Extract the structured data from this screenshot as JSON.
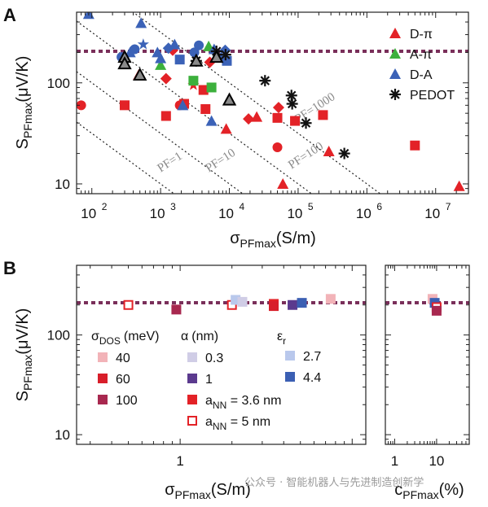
{
  "watermark": "公众号 · 智能机器人与先进制造创新学",
  "chart_data": [
    {
      "panel": "A",
      "type": "scatter",
      "x_scale": "log",
      "y_scale": "log",
      "xlabel_main": "σ",
      "xlabel_sub": "PFmax",
      "xlabel_unit": "(S/m)",
      "ylabel_main": "S",
      "ylabel_sub": "PFmax",
      "ylabel_unit": "(μV/K)",
      "xlim": [
        60,
        30000000
      ],
      "ylim": [
        8,
        500
      ],
      "x_ticks": [
        {
          "v": 100,
          "m": "10",
          "e": "2"
        },
        {
          "v": 1000,
          "m": "10",
          "e": "3"
        },
        {
          "v": 10000,
          "m": "10",
          "e": "4"
        },
        {
          "v": 100000,
          "m": "10",
          "e": "5"
        },
        {
          "v": 1000000,
          "m": "10",
          "e": "6"
        },
        {
          "v": 10000000,
          "m": "10",
          "e": "7"
        }
      ],
      "y_ticks": [
        {
          "v": 10,
          "t": "10"
        },
        {
          "v": 100,
          "t": "100"
        }
      ],
      "reference_S": 200,
      "pf_lines": [
        {
          "pf": 1,
          "label": "PF=1",
          "label_x": 1000,
          "label_y": 13
        },
        {
          "pf": 10,
          "label": "PF=10",
          "label_x": 5000,
          "label_y": 13
        },
        {
          "pf": 100,
          "label": "PF=100",
          "label_x": 80000,
          "label_y": 14
        },
        {
          "pf": 1000,
          "label": "PF=1000",
          "label_x": 100000,
          "label_y": 40
        }
      ],
      "legend": [
        {
          "label": "D-π",
          "color": "#e32227",
          "marker": "triangle"
        },
        {
          "label": "A-π",
          "color": "#3cb03c",
          "marker": "triangle"
        },
        {
          "label": "D-A",
          "color": "#3b62b7",
          "marker": "triangle"
        },
        {
          "label": "PEDOT",
          "color": "#111111",
          "marker": "asterisk"
        }
      ],
      "series": [
        {
          "name": "D-π",
          "color": "#e32227",
          "points": [
            {
              "x": 70,
              "y": 60,
              "m": "circle"
            },
            {
              "x": 300,
              "y": 60,
              "m": "square"
            },
            {
              "x": 480,
              "y": 120,
              "m": "triangle"
            },
            {
              "x": 1200,
              "y": 47,
              "m": "square"
            },
            {
              "x": 1500,
              "y": 210,
              "m": "diamond"
            },
            {
              "x": 1200,
              "y": 110,
              "m": "diamond"
            },
            {
              "x": 1900,
              "y": 60,
              "m": "circle"
            },
            {
              "x": 2200,
              "y": 62,
              "m": "square"
            },
            {
              "x": 3000,
              "y": 95,
              "m": "star"
            },
            {
              "x": 4200,
              "y": 85,
              "m": "square"
            },
            {
              "x": 4500,
              "y": 55,
              "m": "square"
            },
            {
              "x": 5200,
              "y": 160,
              "m": "diamond"
            },
            {
              "x": 9000,
              "y": 35,
              "m": "triangle"
            },
            {
              "x": 19000,
              "y": 44,
              "m": "diamond"
            },
            {
              "x": 25000,
              "y": 46,
              "m": "triangle"
            },
            {
              "x": 50000,
              "y": 45,
              "m": "square"
            },
            {
              "x": 52000,
              "y": 57,
              "m": "diamond"
            },
            {
              "x": 50000,
              "y": 23,
              "m": "circle"
            },
            {
              "x": 60000,
              "y": 10,
              "m": "triangle"
            },
            {
              "x": 90000,
              "y": 42,
              "m": "square"
            },
            {
              "x": 230000,
              "y": 48,
              "m": "square"
            },
            {
              "x": 280000,
              "y": 21,
              "m": "triangle"
            },
            {
              "x": 5000000,
              "y": 24,
              "m": "square"
            },
            {
              "x": 22000000,
              "y": 9.5,
              "m": "triangle"
            }
          ]
        },
        {
          "name": "A-π",
          "color": "#3cb03c",
          "points": [
            {
              "x": 1000,
              "y": 150,
              "m": "triangle"
            },
            {
              "x": 3000,
              "y": 105,
              "m": "square"
            },
            {
              "x": 5000,
              "y": 230,
              "m": "triangle"
            },
            {
              "x": 5500,
              "y": 90,
              "m": "square"
            }
          ]
        },
        {
          "name": "D-A",
          "color": "#3b62b7",
          "points": [
            {
              "x": 90,
              "y": 480,
              "m": "triangle"
            },
            {
              "x": 270,
              "y": 180,
              "m": "circle"
            },
            {
              "x": 360,
              "y": 200,
              "m": "triangle"
            },
            {
              "x": 420,
              "y": 215,
              "m": "circle"
            },
            {
              "x": 520,
              "y": 390,
              "m": "triangle"
            },
            {
              "x": 560,
              "y": 240,
              "m": "star"
            },
            {
              "x": 900,
              "y": 200,
              "m": "triangle"
            },
            {
              "x": 1000,
              "y": 175,
              "m": "triangle"
            },
            {
              "x": 1300,
              "y": 220,
              "m": "diamond"
            },
            {
              "x": 1600,
              "y": 240,
              "m": "triangle"
            },
            {
              "x": 1900,
              "y": 170,
              "m": "square"
            },
            {
              "x": 2100,
              "y": 60,
              "m": "triangle"
            },
            {
              "x": 3100,
              "y": 200,
              "m": "circle"
            },
            {
              "x": 3600,
              "y": 235,
              "m": "circle"
            },
            {
              "x": 5500,
              "y": 42,
              "m": "triangle"
            },
            {
              "x": 6000,
              "y": 215,
              "m": "triangle"
            },
            {
              "x": 7600,
              "y": 180,
              "m": "triangle"
            },
            {
              "x": 8700,
              "y": 210,
              "m": "diamond"
            },
            {
              "x": 9200,
              "y": 165,
              "m": "square"
            }
          ]
        },
        {
          "name": "PEDOT",
          "color": "#111111",
          "points": [
            {
              "x": 3300,
              "y": 165,
              "m": "asterisk"
            },
            {
              "x": 6500,
              "y": 205,
              "m": "asterisk"
            },
            {
              "x": 8800,
              "y": 190,
              "m": "asterisk"
            },
            {
              "x": 33000,
              "y": 105,
              "m": "asterisk"
            },
            {
              "x": 80000,
              "y": 75,
              "m": "asterisk"
            },
            {
              "x": 82000,
              "y": 62,
              "m": "asterisk"
            },
            {
              "x": 130000,
              "y": 40,
              "m": "asterisk"
            },
            {
              "x": 470000,
              "y": 20,
              "m": "asterisk"
            }
          ]
        },
        {
          "name": "outlined",
          "color": "#888888",
          "points": [
            {
              "x": 300,
              "y": 180,
              "m": "otriangle"
            },
            {
              "x": 300,
              "y": 155,
              "m": "otriangle"
            },
            {
              "x": 500,
              "y": 120,
              "m": "otriangle"
            },
            {
              "x": 3300,
              "y": 165,
              "m": "otriangle"
            },
            {
              "x": 6500,
              "y": 180,
              "m": "otriangle"
            },
            {
              "x": 10000,
              "y": 68,
              "m": "otriangle"
            }
          ]
        }
      ]
    },
    {
      "panel": "B",
      "type": "scatter",
      "x_scale": "log",
      "y_scale": "log",
      "xlabel_main": "σ",
      "xlabel_sub": "PFmax",
      "xlabel_unit": "(S/m)",
      "ylabel_main": "S",
      "ylabel_sub": "PFmax",
      "ylabel_unit": "(μV/K)",
      "xlim": [
        0.25,
        12
      ],
      "ylim": [
        8,
        500
      ],
      "x_ticks": [
        {
          "v": 1,
          "t": "1"
        }
      ],
      "y_ticks": [
        {
          "v": 10,
          "t": "10"
        },
        {
          "v": 100,
          "t": "100"
        }
      ],
      "reference_S": 200,
      "legend_groups": [
        {
          "title_main": "σ",
          "title_sub": "DOS",
          "title_unit": "(meV)",
          "items": [
            {
              "label": "40",
              "color": "#f2b3b8",
              "marker": "square"
            },
            {
              "label": "60",
              "color": "#d81e2a",
              "marker": "square"
            },
            {
              "label": "100",
              "color": "#a8284f",
              "marker": "square"
            }
          ]
        },
        {
          "title_main": "α",
          "title_sub": "",
          "title_unit": "(nm)",
          "items": [
            {
              "label": "0.3",
              "color": "#d0cde6",
              "marker": "square"
            },
            {
              "label": "1",
              "color": "#5b3a8e",
              "marker": "square"
            },
            {
              "label": "a_NN = 3.6 nm",
              "color": "#e32227",
              "marker": "square"
            },
            {
              "label": "a_NN = 5 nm",
              "color": "#e32227",
              "marker": "osquare"
            }
          ]
        },
        {
          "title_main": "ε",
          "title_sub": "r",
          "title_unit": "",
          "items": [
            {
              "label": "2.7",
              "color": "#b9c8ec",
              "marker": "square"
            },
            {
              "label": "4.4",
              "color": "#3b5fb3",
              "marker": "square"
            }
          ]
        }
      ],
      "points": [
        {
          "x": 0.5,
          "y": 200,
          "c": "#e32227",
          "m": "osquare"
        },
        {
          "x": 0.95,
          "y": 180,
          "c": "#a8284f",
          "m": "square"
        },
        {
          "x": 2.0,
          "y": 200,
          "c": "#e32227",
          "m": "osquare"
        },
        {
          "x": 2.1,
          "y": 225,
          "c": "#b9c8ec",
          "m": "square"
        },
        {
          "x": 2.3,
          "y": 215,
          "c": "#d0cde6",
          "m": "square"
        },
        {
          "x": 3.5,
          "y": 205,
          "c": "#e32227",
          "m": "square"
        },
        {
          "x": 3.5,
          "y": 195,
          "c": "#d81e2a",
          "m": "square"
        },
        {
          "x": 4.5,
          "y": 200,
          "c": "#5b3a8e",
          "m": "square"
        },
        {
          "x": 5.1,
          "y": 210,
          "c": "#3b5fb3",
          "m": "square"
        },
        {
          "x": 7.5,
          "y": 230,
          "c": "#f2b3b8",
          "m": "square"
        }
      ]
    },
    {
      "panel": "B-right",
      "type": "scatter",
      "x_scale": "log",
      "y_scale": "log",
      "xlabel_main": "c",
      "xlabel_sub": "PFmax",
      "xlabel_unit": "(%)",
      "xlim": [
        0.6,
        60
      ],
      "ylim": [
        8,
        500
      ],
      "x_ticks": [
        {
          "v": 1,
          "t": "1"
        },
        {
          "v": 10,
          "t": "10"
        }
      ],
      "reference_S": 200,
      "points": [
        {
          "x": 8,
          "y": 230,
          "c": "#f2b3b8",
          "m": "square"
        },
        {
          "x": 9,
          "y": 210,
          "c": "#3b5fb3",
          "m": "square"
        },
        {
          "x": 10,
          "y": 190,
          "c": "#e32227",
          "m": "osquare"
        },
        {
          "x": 10,
          "y": 175,
          "c": "#a8284f",
          "m": "square"
        }
      ]
    }
  ],
  "panel_labels": [
    "A",
    "B"
  ]
}
